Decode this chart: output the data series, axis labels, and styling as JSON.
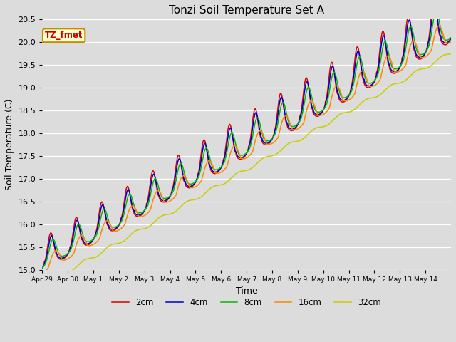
{
  "title": "Tonzi Soil Temperature Set A",
  "xlabel": "Time",
  "ylabel": "Soil Temperature (C)",
  "ylim": [
    15.0,
    20.5
  ],
  "xlim": [
    -2,
    14
  ],
  "colors": {
    "2cm": "#dd0000",
    "4cm": "#0000cc",
    "8cm": "#00bb00",
    "16cm": "#ff8800",
    "32cm": "#cccc00"
  },
  "annotation_text": "TZ_fmet",
  "annotation_bg": "#ffffcc",
  "annotation_border": "#cc8800",
  "bg_color": "#dcdcdc",
  "grid_color": "#ffffff",
  "tick_labels": [
    "Apr 29",
    "Apr 30",
    "May 1",
    "May 2",
    "May 3",
    "May 4",
    "May 5",
    "May 6",
    "May 7",
    "May 8",
    "May 9",
    "May 10",
    "May 11",
    "May 12",
    "May 13",
    "May 14"
  ],
  "tick_positions": [
    -2,
    -1,
    0,
    1,
    2,
    3,
    4,
    5,
    6,
    7,
    8,
    9,
    10,
    11,
    12,
    13
  ]
}
